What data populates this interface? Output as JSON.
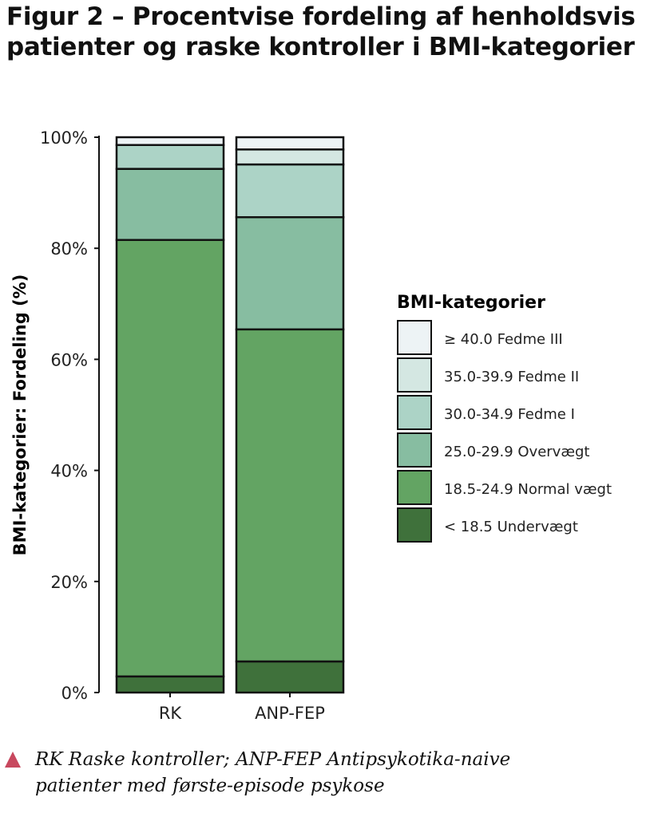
{
  "title": "Figur 2 – Procentvise fordeling af henholdsvis patienter og raske kontroller i BMI-kategorier",
  "chart_data": {
    "type": "bar",
    "stacked": true,
    "ylabel": "BMI-kategorier: Fordeling (%)",
    "xlabel": "",
    "ylim": [
      0,
      100
    ],
    "yticks": [
      "0%",
      "20%",
      "40%",
      "60%",
      "80%",
      "100%"
    ],
    "categories": [
      "RK",
      "ANP-FEP"
    ],
    "legend_title": "BMI-kategorier",
    "legend_position": "right",
    "series": [
      {
        "name": "< 18.5 Undervægt",
        "color": "#3f713b",
        "values": [
          2.9,
          5.6
        ]
      },
      {
        "name": "18.5-24.9 Normal vægt",
        "color": "#63a463",
        "values": [
          78.6,
          59.8
        ]
      },
      {
        "name": "25.0-29.9 Overvægt",
        "color": "#87bda1",
        "values": [
          12.8,
          20.2
        ]
      },
      {
        "name": "30.0-34.9 Fedme I",
        "color": "#acd3c6",
        "values": [
          4.3,
          9.5
        ]
      },
      {
        "name": "35.0-39.9 Fedme II",
        "color": "#d4e7e2",
        "values": [
          0,
          2.7
        ]
      },
      {
        "name": "≥ 40.0 Fedme III",
        "color": "#edf3f5",
        "values": [
          1.4,
          2.2
        ]
      }
    ]
  },
  "footnote": {
    "line1": "RK Raske kontroller; ANP-FEP Antipsykotika-naive",
    "line2": "patienter med første-episode psykose"
  }
}
